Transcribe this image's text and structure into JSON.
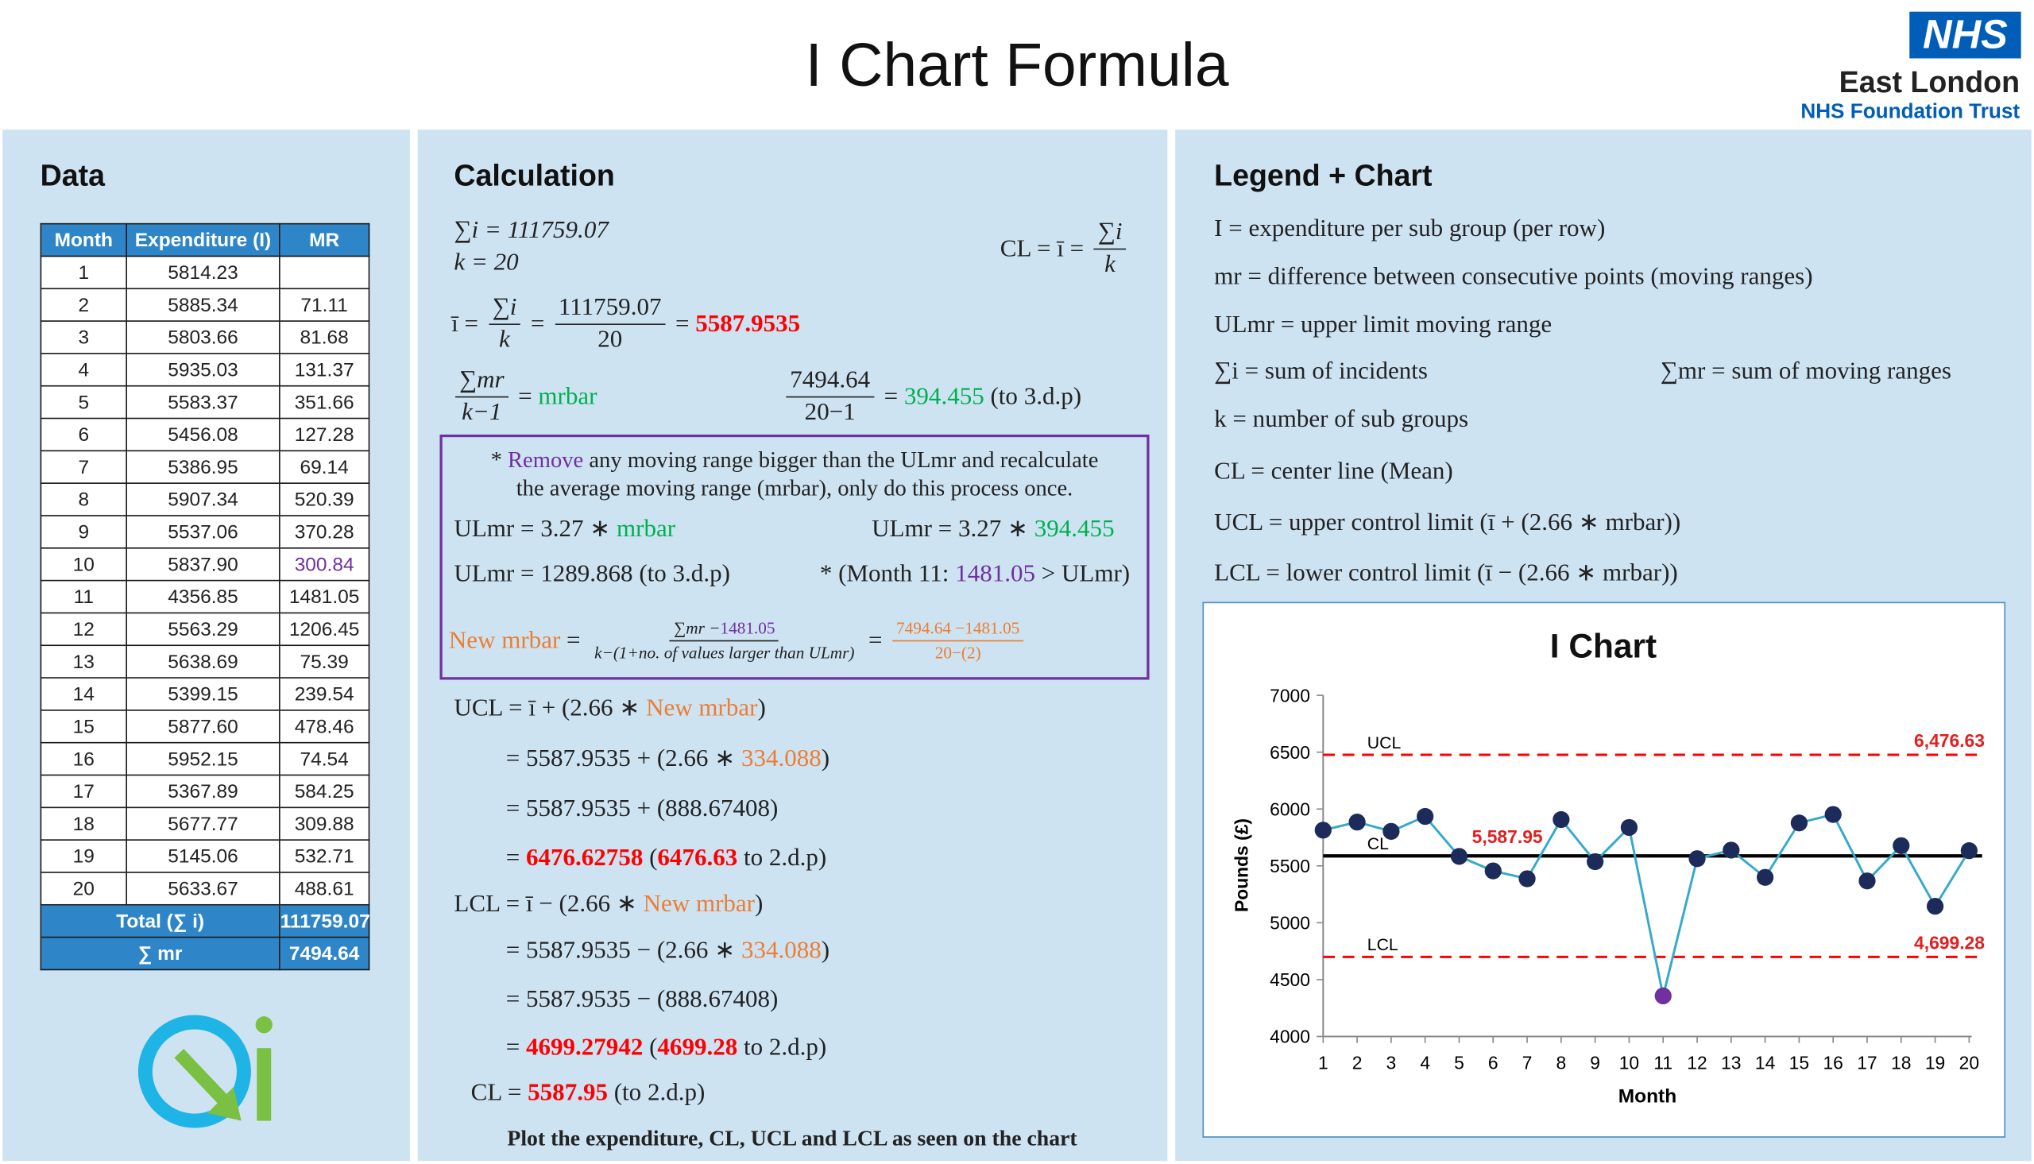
{
  "header": {
    "title": "I Chart Formula",
    "logo": "NHS",
    "organisation": "East London",
    "trust": "NHS Foundation Trust"
  },
  "data_panel": {
    "heading": "Data",
    "table": {
      "columns": [
        "Month",
        "Expenditure (I)",
        "MR"
      ],
      "rows": [
        [
          "1",
          "5814.23",
          null
        ],
        [
          "2",
          "5885.34",
          "71.11"
        ],
        [
          "3",
          "5803.66",
          "81.68"
        ],
        [
          "4",
          "5935.03",
          "131.37"
        ],
        [
          "5",
          "5583.37",
          "351.66"
        ],
        [
          "6",
          "5456.08",
          "127.28"
        ],
        [
          "7",
          "5386.95",
          "69.14"
        ],
        [
          "8",
          "5907.34",
          "520.39"
        ],
        [
          "9",
          "5537.06",
          "370.28"
        ],
        [
          "10",
          "5837.90",
          "300.84"
        ],
        [
          "11",
          "4356.85",
          "1481.05"
        ],
        [
          "12",
          "5563.29",
          "1206.45"
        ],
        [
          "13",
          "5638.69",
          "75.39"
        ],
        [
          "14",
          "5399.15",
          "239.54"
        ],
        [
          "15",
          "5877.60",
          "478.46"
        ],
        [
          "16",
          "5952.15",
          "74.54"
        ],
        [
          "17",
          "5367.89",
          "584.25"
        ],
        [
          "18",
          "5677.77",
          "309.88"
        ],
        [
          "19",
          "5145.06",
          "532.71"
        ],
        [
          "20",
          "5633.67",
          "488.61"
        ]
      ],
      "footer": [
        [
          "Total (∑ i)",
          "111759.07"
        ],
        [
          "∑ mr",
          "7494.64"
        ]
      ]
    }
  },
  "calculation": {
    "heading": "Calculation",
    "lines": [
      [
        "∑i = 111759.07"
      ],
      [
        "k = 20"
      ],
      [
        "CL = ī = ",
        "∑i",
        "k"
      ],
      [
        "ī = ",
        "∑i",
        "k",
        " = ",
        "111759.07",
        "20",
        " = ",
        "5587.9535"
      ],
      [
        "∑mr",
        "k−1",
        " = ",
        "mrbar"
      ],
      [
        "7494.64",
        "20−1",
        " = ",
        "394.455",
        " (to 3.d.p)"
      ],
      [
        "* ",
        "Remove",
        " any moving range bigger than the ULmr and recalculate"
      ],
      [
        "the average moving range (mrbar), only do this process once."
      ],
      [
        "ULmr = 3.27 ∗ ",
        "mrbar"
      ],
      [
        "ULmr = 3.27 ∗ ",
        "394.455"
      ],
      [
        "ULmr = 1289.868 (to 3.d.p)"
      ],
      [
        "* (Month 11: ",
        "1481.05",
        " > ULmr)"
      ],
      [
        "New mrbar",
        " = ",
        "∑mr −",
        "1481.05",
        "k−(1+no. of values larger than ULmr)",
        " = ",
        "7494.64 −1481.05",
        "20−(2)"
      ],
      [
        "UCL = ī + (2.66 ∗ ",
        "New mrbar",
        ")"
      ],
      [
        "= 5587.9535 + (2.66 ∗ ",
        "334.088",
        ")"
      ],
      [
        "= 5587.9535 + (888.67408)"
      ],
      [
        "= ",
        "6476.62758",
        " (",
        "6476.63",
        " to 2.d.p)"
      ],
      [
        "LCL = ī − (2.66 ∗ ",
        "New mrbar",
        ")"
      ],
      [
        "= 5587.9535 − (2.66 ∗ ",
        "334.088",
        ")"
      ],
      [
        "= 5587.9535 − (888.67408)"
      ],
      [
        "= ",
        "4699.27942",
        " (",
        "4699.28",
        " to 2.d.p)"
      ],
      [
        "CL = ",
        "5587.95",
        " (to 2.d.p)"
      ],
      [
        "Plot the expenditure, CL, UCL and LCL as seen on the chart"
      ]
    ]
  },
  "legend_panel": {
    "heading": "Legend + Chart",
    "lines": [
      "I = expenditure per sub group (per row)",
      "mr = difference between consecutive points (moving ranges)",
      "ULmr = upper limit moving range",
      "∑i = sum of incidents",
      "∑mr = sum of moving ranges",
      "k = number of sub groups",
      "CL = center line (Mean)",
      "UCL = upper control limit (ī + (2.66 ∗ mrbar))",
      "LCL = lower control limit (ī − (2.66 ∗ mrbar))"
    ]
  },
  "chart_data": {
    "type": "line",
    "title": "I Chart",
    "x_label": "Month",
    "y_label": "Pounds (£)",
    "x": [
      1,
      2,
      3,
      4,
      5,
      6,
      7,
      8,
      9,
      10,
      11,
      12,
      13,
      14,
      15,
      16,
      17,
      18,
      19,
      20
    ],
    "xlim": [
      1,
      20
    ],
    "xticks": [
      1,
      2,
      3,
      4,
      5,
      6,
      7,
      8,
      9,
      10,
      11,
      12,
      13,
      14,
      15,
      16,
      17,
      18,
      19,
      20
    ],
    "ylim": [
      4000,
      7000
    ],
    "yticks": [
      4000,
      4500,
      5000,
      5500,
      6000,
      6500,
      7000
    ],
    "series": [
      {
        "color": "#35a9cb",
        "values": [
          5814.23,
          5885.34,
          5803.66,
          5935.03,
          5583.37,
          5456.08,
          5386.95,
          5907.34,
          5537.06,
          5837.9,
          4356.85,
          5563.29,
          5638.69,
          5399.15,
          5877.6,
          5952.15,
          5367.89,
          5677.77,
          5145.06,
          5633.67
        ],
        "marker_colors": [
          "#1c2b5a",
          "#1c2b5a",
          "#1c2b5a",
          "#1c2b5a",
          "#1c2b5a",
          "#1c2b5a",
          "#1c2b5a",
          "#1c2b5a",
          "#1c2b5a",
          "#1c2b5a",
          "#7030a0",
          "#1c2b5a",
          "#1c2b5a",
          "#1c2b5a",
          "#1c2b5a",
          "#1c2b5a",
          "#1c2b5a",
          "#1c2b5a",
          "#1c2b5a",
          "#1c2b5a"
        ]
      }
    ],
    "reference_lines": [
      {
        "name": "UCL",
        "value": 6476.63,
        "value_label": "6,476.63",
        "color": "#ff0000",
        "style": "dashed"
      },
      {
        "name": "CL",
        "value": 5587.95,
        "value_label": "5,587.95",
        "color": "#000000",
        "style": "solid"
      },
      {
        "name": "LCL",
        "value": 4699.28,
        "value_label": "4,699.28",
        "color": "#ff0000",
        "style": "dashed"
      }
    ]
  }
}
